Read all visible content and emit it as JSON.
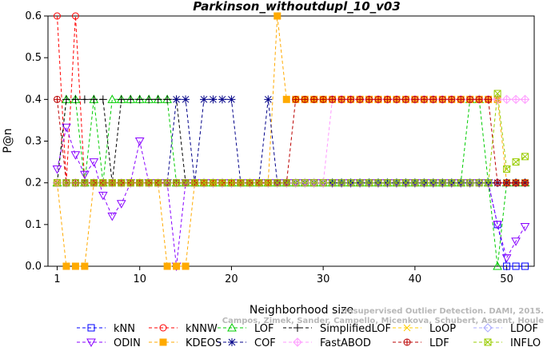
{
  "chart_data": {
    "type": "line",
    "title": "Parkinson_withoutdupl_10_v03",
    "xlabel": "Neighborhood size",
    "ylabel": "P@n",
    "xlim": [
      0,
      53
    ],
    "ylim": [
      0,
      0.6
    ],
    "xticks": [
      1,
      10,
      20,
      30,
      40,
      50
    ],
    "yticks": [
      0.0,
      0.1,
      0.2,
      0.3,
      0.4,
      0.5,
      0.6
    ],
    "x": [
      1,
      2,
      3,
      4,
      5,
      6,
      7,
      8,
      9,
      10,
      11,
      12,
      13,
      14,
      15,
      16,
      17,
      18,
      19,
      20,
      21,
      22,
      23,
      24,
      25,
      26,
      27,
      28,
      29,
      30,
      31,
      32,
      33,
      34,
      35,
      36,
      37,
      38,
      39,
      40,
      41,
      42,
      43,
      44,
      45,
      46,
      47,
      48,
      49,
      50,
      51,
      52
    ],
    "watermark": {
      "line1": "Unsupervised Outlier Detection. DAMI, 2015.",
      "line2": "Campos, Zimek, Sander, Campello, Micenkova, Schubert, Assent, Houle"
    },
    "series": [
      {
        "name": "kNN",
        "color": "#0000ff",
        "marker": "square",
        "values": [
          0.2,
          0.2,
          0.2,
          0.2,
          0.2,
          0.2,
          0.2,
          0.2,
          0.2,
          0.2,
          0.2,
          0.2,
          0.2,
          0.2,
          0.2,
          0.2,
          0.2,
          0.2,
          0.2,
          0.2,
          0.2,
          0.2,
          0.2,
          0.2,
          0.2,
          0.2,
          0.2,
          0.2,
          0.2,
          0.2,
          0.2,
          0.2,
          0.2,
          0.2,
          0.2,
          0.2,
          0.2,
          0.2,
          0.2,
          0.2,
          0.2,
          0.2,
          0.2,
          0.2,
          0.2,
          0.2,
          0.2,
          0.2,
          0.1,
          0.0,
          0.0,
          0.0
        ]
      },
      {
        "name": "kNNW",
        "color": "#ff0000",
        "marker": "circle",
        "values": [
          0.6,
          0.2,
          0.6,
          0.2,
          0.2,
          0.2,
          0.2,
          0.2,
          0.2,
          0.2,
          0.2,
          0.2,
          0.2,
          0.2,
          0.2,
          0.2,
          0.2,
          0.2,
          0.2,
          0.2,
          0.2,
          0.2,
          0.2,
          0.2,
          0.2,
          0.2,
          0.2,
          0.2,
          0.2,
          0.2,
          0.2,
          0.2,
          0.2,
          0.2,
          0.2,
          0.2,
          0.2,
          0.2,
          0.2,
          0.2,
          0.2,
          0.2,
          0.2,
          0.2,
          0.2,
          0.2,
          0.2,
          0.2,
          0.2,
          0.2,
          0.2,
          0.2
        ]
      },
      {
        "name": "LOF",
        "color": "#00cc00",
        "marker": "triangle-up",
        "values": [
          0.2,
          0.4,
          0.4,
          0.2,
          0.4,
          0.2,
          0.4,
          0.4,
          0.4,
          0.4,
          0.4,
          0.4,
          0.4,
          0.2,
          0.2,
          0.2,
          0.2,
          0.2,
          0.2,
          0.2,
          0.2,
          0.2,
          0.2,
          0.2,
          0.2,
          0.2,
          0.2,
          0.2,
          0.2,
          0.2,
          0.2,
          0.2,
          0.2,
          0.2,
          0.2,
          0.2,
          0.2,
          0.2,
          0.2,
          0.2,
          0.2,
          0.2,
          0.2,
          0.2,
          0.2,
          0.4,
          0.4,
          0.2,
          0.0,
          0.2,
          0.2,
          0.2
        ]
      },
      {
        "name": "SimplifiedLOF",
        "color": "#000000",
        "marker": "plus",
        "values": [
          0.2,
          0.4,
          0.4,
          0.4,
          0.4,
          0.4,
          0.2,
          0.4,
          0.4,
          0.4,
          0.4,
          0.4,
          0.4,
          0.4,
          0.2,
          0.2,
          0.2,
          0.2,
          0.2,
          0.2,
          0.2,
          0.2,
          0.2,
          0.2,
          0.2,
          0.2,
          0.2,
          0.2,
          0.2,
          0.2,
          0.2,
          0.2,
          0.2,
          0.2,
          0.2,
          0.2,
          0.2,
          0.2,
          0.2,
          0.2,
          0.2,
          0.2,
          0.2,
          0.2,
          0.2,
          0.2,
          0.2,
          0.2,
          0.2,
          0.2,
          0.2,
          0.2
        ]
      },
      {
        "name": "LoOP",
        "color": "#ffcc00",
        "marker": "x",
        "values": [
          0.2,
          0.2,
          0.2,
          0.2,
          0.2,
          0.2,
          0.2,
          0.2,
          0.2,
          0.2,
          0.2,
          0.2,
          0.2,
          0.2,
          0.2,
          0.2,
          0.2,
          0.2,
          0.2,
          0.2,
          0.2,
          0.2,
          0.2,
          0.2,
          0.2,
          0.2,
          0.2,
          0.2,
          0.2,
          0.2,
          0.2,
          0.2,
          0.2,
          0.2,
          0.2,
          0.2,
          0.2,
          0.2,
          0.2,
          0.2,
          0.2,
          0.2,
          0.2,
          0.2,
          0.2,
          0.2,
          0.2,
          0.2,
          0.2,
          0.2,
          0.2,
          0.2
        ]
      },
      {
        "name": "LDOF",
        "color": "#aaaaff",
        "marker": "diamond",
        "values": [
          0.2,
          0.2,
          0.2,
          0.2,
          0.2,
          0.2,
          0.2,
          0.2,
          0.2,
          0.2,
          0.2,
          0.2,
          0.2,
          0.2,
          0.2,
          0.2,
          0.2,
          0.2,
          0.2,
          0.2,
          0.2,
          0.2,
          0.2,
          0.2,
          0.2,
          0.2,
          0.2,
          0.2,
          0.2,
          0.2,
          0.2,
          0.2,
          0.2,
          0.2,
          0.2,
          0.2,
          0.2,
          0.2,
          0.2,
          0.2,
          0.2,
          0.2,
          0.2,
          0.2,
          0.2,
          0.2,
          0.2,
          0.2,
          0.2,
          0.2,
          0.2,
          0.2
        ]
      },
      {
        "name": "ODIN",
        "color": "#8800ff",
        "marker": "triangle-down",
        "values": [
          0.233,
          0.333,
          0.267,
          0.22,
          0.25,
          0.17,
          0.12,
          0.15,
          0.2,
          0.3,
          0.2,
          0.2,
          0.2,
          0.0,
          0.2,
          0.2,
          0.2,
          0.2,
          0.2,
          0.2,
          0.2,
          0.2,
          0.2,
          0.2,
          0.2,
          0.2,
          0.2,
          0.2,
          0.2,
          0.2,
          0.2,
          0.2,
          0.2,
          0.2,
          0.2,
          0.2,
          0.2,
          0.2,
          0.2,
          0.2,
          0.2,
          0.2,
          0.2,
          0.2,
          0.2,
          0.2,
          0.2,
          0.2,
          0.1,
          0.02,
          0.06,
          0.095
        ]
      },
      {
        "name": "KDEOS",
        "color": "#ffaa00",
        "marker": "square-filled",
        "values": [
          0.2,
          0.0,
          0.0,
          0.0,
          0.2,
          0.2,
          0.2,
          0.2,
          0.2,
          0.2,
          0.2,
          0.2,
          0.0,
          0.0,
          0.0,
          0.2,
          0.2,
          0.2,
          0.2,
          0.2,
          0.2,
          0.2,
          0.2,
          0.2,
          0.6,
          0.4,
          0.4,
          0.4,
          0.4,
          0.4,
          0.4,
          0.4,
          0.4,
          0.4,
          0.4,
          0.4,
          0.4,
          0.4,
          0.4,
          0.4,
          0.4,
          0.4,
          0.4,
          0.4,
          0.4,
          0.4,
          0.4,
          0.4,
          0.4,
          0.2,
          0.2,
          0.2
        ]
      },
      {
        "name": "COF",
        "color": "#000088",
        "marker": "asterisk",
        "values": [
          0.2,
          0.2,
          0.2,
          0.2,
          0.2,
          0.2,
          0.2,
          0.2,
          0.2,
          0.2,
          0.2,
          0.2,
          0.2,
          0.4,
          0.4,
          0.2,
          0.4,
          0.4,
          0.4,
          0.4,
          0.2,
          0.2,
          0.2,
          0.4,
          0.2,
          0.2,
          0.2,
          0.2,
          0.2,
          0.2,
          0.2,
          0.2,
          0.2,
          0.2,
          0.2,
          0.2,
          0.2,
          0.2,
          0.2,
          0.2,
          0.2,
          0.2,
          0.2,
          0.2,
          0.2,
          0.2,
          0.2,
          0.2,
          0.2,
          0.2,
          0.2,
          0.2
        ]
      },
      {
        "name": "FastABOD",
        "color": "#ff99ff",
        "marker": "diamond-plus",
        "values": [
          0.2,
          0.2,
          0.2,
          0.2,
          0.2,
          0.2,
          0.2,
          0.2,
          0.2,
          0.2,
          0.2,
          0.2,
          0.2,
          0.2,
          0.2,
          0.2,
          0.2,
          0.2,
          0.2,
          0.2,
          0.2,
          0.2,
          0.2,
          0.2,
          0.2,
          0.2,
          0.2,
          0.2,
          0.2,
          0.2,
          0.4,
          0.4,
          0.4,
          0.4,
          0.4,
          0.4,
          0.4,
          0.4,
          0.4,
          0.4,
          0.4,
          0.4,
          0.4,
          0.4,
          0.4,
          0.4,
          0.4,
          0.4,
          0.4,
          0.4,
          0.4,
          0.4
        ]
      },
      {
        "name": "LDF",
        "color": "#bb0000",
        "marker": "circle-plus",
        "values": [
          0.4,
          0.2,
          0.2,
          0.2,
          0.2,
          0.2,
          0.2,
          0.2,
          0.2,
          0.2,
          0.2,
          0.2,
          0.2,
          0.2,
          0.2,
          0.2,
          0.2,
          0.2,
          0.2,
          0.2,
          0.2,
          0.2,
          0.2,
          0.2,
          0.2,
          0.2,
          0.4,
          0.4,
          0.4,
          0.4,
          0.4,
          0.4,
          0.4,
          0.4,
          0.4,
          0.4,
          0.4,
          0.4,
          0.4,
          0.4,
          0.4,
          0.4,
          0.4,
          0.4,
          0.4,
          0.4,
          0.4,
          0.4,
          0.2,
          0.2,
          0.2,
          0.2
        ]
      },
      {
        "name": "INFLO",
        "color": "#99cc00",
        "marker": "square-x",
        "values": [
          0.2,
          0.2,
          0.2,
          0.2,
          0.2,
          0.2,
          0.2,
          0.2,
          0.2,
          0.2,
          0.2,
          0.2,
          0.2,
          0.2,
          0.2,
          0.2,
          0.2,
          0.2,
          0.2,
          0.2,
          0.2,
          0.2,
          0.2,
          0.2,
          0.2,
          0.2,
          0.2,
          0.2,
          0.2,
          0.2,
          0.2,
          0.2,
          0.2,
          0.2,
          0.2,
          0.2,
          0.2,
          0.2,
          0.2,
          0.2,
          0.2,
          0.2,
          0.2,
          0.2,
          0.2,
          0.2,
          0.2,
          0.2,
          0.414,
          0.233,
          0.25,
          0.263
        ]
      }
    ],
    "legend_rows": [
      [
        "kNN",
        "kNNW",
        "LOF",
        "SimplifiedLOF",
        "LoOP",
        "LDOF"
      ],
      [
        "ODIN",
        "KDEOS",
        "COF",
        "FastABOD",
        "LDF",
        "INFLO"
      ]
    ]
  }
}
